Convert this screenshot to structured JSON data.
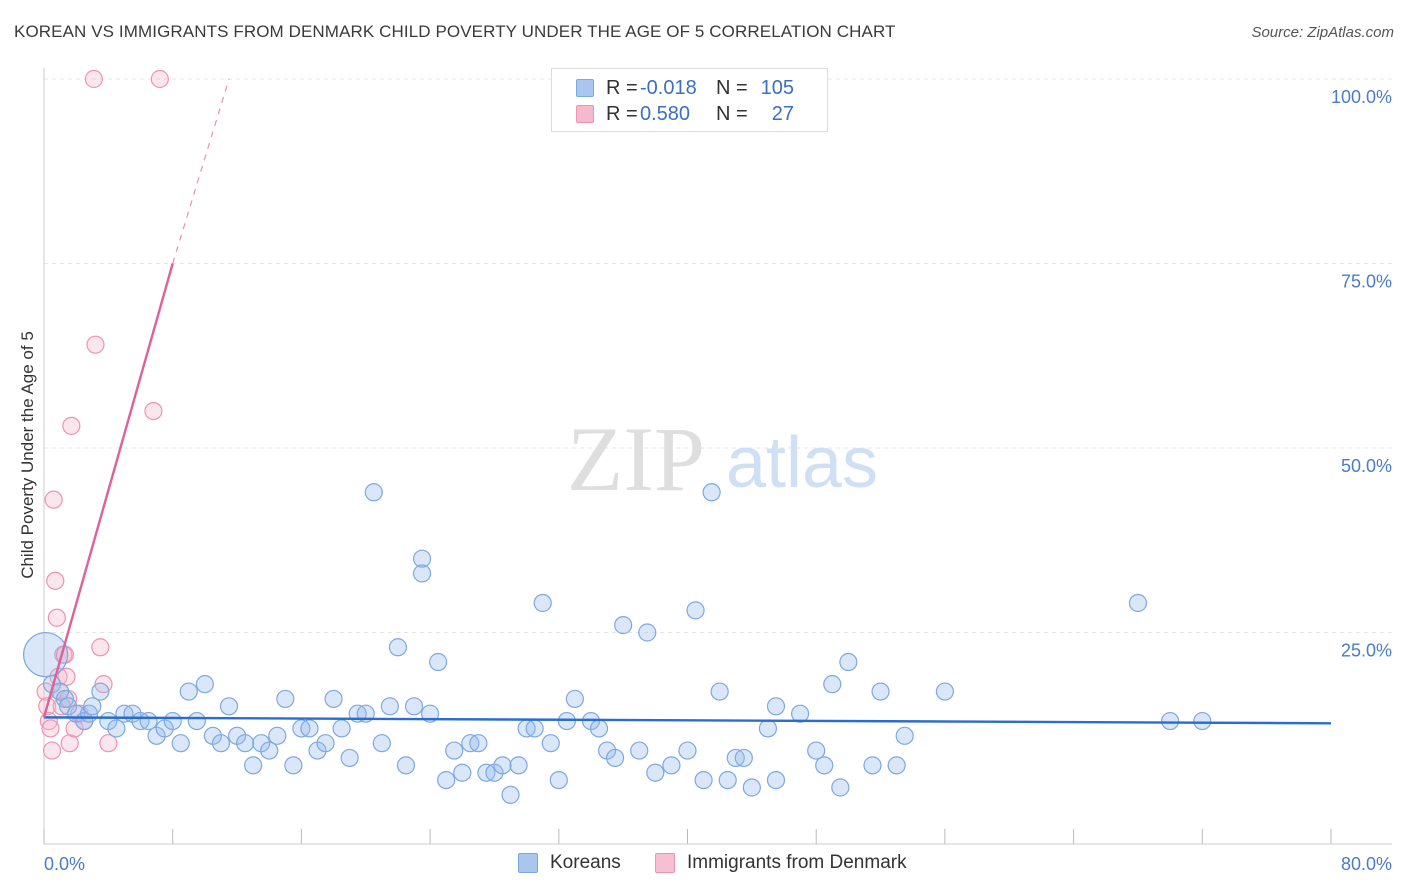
{
  "title": "KOREAN VS IMMIGRANTS FROM DENMARK CHILD POVERTY UNDER THE AGE OF 5 CORRELATION CHART",
  "source": "Source: ZipAtlas.com",
  "watermark": {
    "zip": "ZIP",
    "atlas": "atlas"
  },
  "legend_stats": {
    "rows": [
      {
        "r_label": "R =",
        "r_value": "-0.018",
        "n_label": "N =",
        "n_value": "105",
        "color": "#aac6ee",
        "border": "#7ea8e0"
      },
      {
        "r_label": "R =",
        "r_value": "0.580",
        "n_label": "N =",
        "n_value": "27",
        "color": "#f6b8cc",
        "border": "#ee93b0"
      }
    ]
  },
  "bottom_legend": [
    {
      "label": "Koreans",
      "color": "#aac6ee",
      "border": "#7ea8e0"
    },
    {
      "label": "Immigrants from Denmark",
      "color": "#f6c0d2",
      "border": "#ee93b0"
    }
  ],
  "chart_data": {
    "type": "scatter",
    "title": "KOREAN VS IMMIGRANTS FROM DENMARK CHILD POVERTY UNDER THE AGE OF 5 CORRELATION CHART",
    "xlabel": "",
    "ylabel": "Child Poverty Under the Age of 5",
    "xlim": [
      0,
      80
    ],
    "ylim": [
      0,
      100
    ],
    "x_tick_labels": {
      "left": "0.0%",
      "right": "80.0%"
    },
    "y_tick_labels": [
      "100.0%",
      "75.0%",
      "50.0%",
      "25.0%"
    ],
    "y_tick_values": [
      100,
      75,
      50,
      25
    ],
    "grid": true,
    "series": [
      {
        "name": "Koreans",
        "color": "#7ea8e0",
        "fill": "rgba(150,185,235,0.35)",
        "trend": {
          "x": [
            0,
            80
          ],
          "y": [
            13.5,
            12.7
          ],
          "color": "#2a6ccf"
        },
        "points": [
          [
            0.1,
            22
          ],
          [
            0.5,
            18
          ],
          [
            1.0,
            17
          ],
          [
            1.3,
            16
          ],
          [
            1.5,
            15
          ],
          [
            2.0,
            14
          ],
          [
            2.5,
            13
          ],
          [
            2.8,
            14
          ],
          [
            3.0,
            15
          ],
          [
            3.5,
            17
          ],
          [
            4.0,
            13
          ],
          [
            4.5,
            12
          ],
          [
            5.0,
            14
          ],
          [
            5.5,
            14
          ],
          [
            6.0,
            13
          ],
          [
            6.5,
            13
          ],
          [
            7.0,
            11
          ],
          [
            7.5,
            12
          ],
          [
            8.0,
            13
          ],
          [
            8.5,
            10
          ],
          [
            9.0,
            17
          ],
          [
            9.5,
            13
          ],
          [
            10.0,
            18
          ],
          [
            10.5,
            11
          ],
          [
            11.0,
            10
          ],
          [
            11.5,
            15
          ],
          [
            12.0,
            11
          ],
          [
            12.5,
            10
          ],
          [
            13.0,
            7
          ],
          [
            13.5,
            10
          ],
          [
            14.0,
            9
          ],
          [
            14.5,
            11
          ],
          [
            15.0,
            16
          ],
          [
            15.5,
            7
          ],
          [
            16.0,
            12
          ],
          [
            16.5,
            12
          ],
          [
            17.0,
            9
          ],
          [
            17.5,
            10
          ],
          [
            18.0,
            16
          ],
          [
            18.5,
            12
          ],
          [
            19.0,
            8
          ],
          [
            19.5,
            14
          ],
          [
            20.0,
            14
          ],
          [
            20.5,
            44
          ],
          [
            21.0,
            10
          ],
          [
            21.5,
            15
          ],
          [
            22.0,
            23
          ],
          [
            22.5,
            7
          ],
          [
            23.0,
            15
          ],
          [
            23.5,
            35
          ],
          [
            23.5,
            33
          ],
          [
            24.0,
            14
          ],
          [
            24.5,
            21
          ],
          [
            25.0,
            5
          ],
          [
            25.5,
            9
          ],
          [
            26.0,
            6
          ],
          [
            26.5,
            10
          ],
          [
            27.0,
            10
          ],
          [
            27.5,
            6
          ],
          [
            28.0,
            6
          ],
          [
            28.5,
            7
          ],
          [
            29.0,
            3
          ],
          [
            29.5,
            7
          ],
          [
            30.0,
            12
          ],
          [
            30.5,
            12
          ],
          [
            31.0,
            29
          ],
          [
            31.5,
            10
          ],
          [
            32.0,
            5
          ],
          [
            32.5,
            13
          ],
          [
            33.0,
            16
          ],
          [
            34.0,
            13
          ],
          [
            34.5,
            12
          ],
          [
            35.0,
            9
          ],
          [
            35.5,
            8
          ],
          [
            36.0,
            26
          ],
          [
            37.0,
            9
          ],
          [
            37.5,
            25
          ],
          [
            38.0,
            6
          ],
          [
            39.0,
            7
          ],
          [
            40.0,
            9
          ],
          [
            40.5,
            28
          ],
          [
            41.0,
            5
          ],
          [
            41.5,
            44
          ],
          [
            42.0,
            17
          ],
          [
            42.5,
            5
          ],
          [
            43.0,
            8
          ],
          [
            43.5,
            8
          ],
          [
            44.0,
            4
          ],
          [
            45.0,
            12
          ],
          [
            45.5,
            5
          ],
          [
            45.5,
            15
          ],
          [
            47.0,
            14
          ],
          [
            48.0,
            9
          ],
          [
            48.5,
            7
          ],
          [
            49.0,
            18
          ],
          [
            49.5,
            4
          ],
          [
            50.0,
            21
          ],
          [
            51.5,
            7
          ],
          [
            52.0,
            17
          ],
          [
            53.0,
            7
          ],
          [
            53.5,
            11
          ],
          [
            56.0,
            17
          ],
          [
            68.0,
            29
          ],
          [
            70.0,
            13
          ],
          [
            72.0,
            13
          ]
        ]
      },
      {
        "name": "Immigrants from Denmark",
        "color": "#ee93b0",
        "fill": "rgba(246,184,204,0.35)",
        "trend": {
          "x": [
            0,
            8,
            11.5
          ],
          "y": [
            13.5,
            75,
            100
          ],
          "color": "#e0609a"
        },
        "points": [
          [
            0.1,
            17
          ],
          [
            0.2,
            15
          ],
          [
            0.3,
            13
          ],
          [
            0.4,
            12
          ],
          [
            0.5,
            9
          ],
          [
            0.6,
            43
          ],
          [
            0.7,
            32
          ],
          [
            0.8,
            27
          ],
          [
            0.9,
            19
          ],
          [
            1.0,
            17
          ],
          [
            1.1,
            15
          ],
          [
            1.2,
            22
          ],
          [
            1.3,
            22
          ],
          [
            1.4,
            19
          ],
          [
            1.5,
            16
          ],
          [
            1.6,
            10
          ],
          [
            1.7,
            53
          ],
          [
            1.9,
            12
          ],
          [
            2.2,
            14
          ],
          [
            2.5,
            13
          ],
          [
            3.1,
            100
          ],
          [
            3.2,
            64
          ],
          [
            3.5,
            23
          ],
          [
            3.7,
            18
          ],
          [
            4.0,
            10
          ],
          [
            6.8,
            55
          ],
          [
            7.2,
            100
          ]
        ]
      }
    ]
  }
}
